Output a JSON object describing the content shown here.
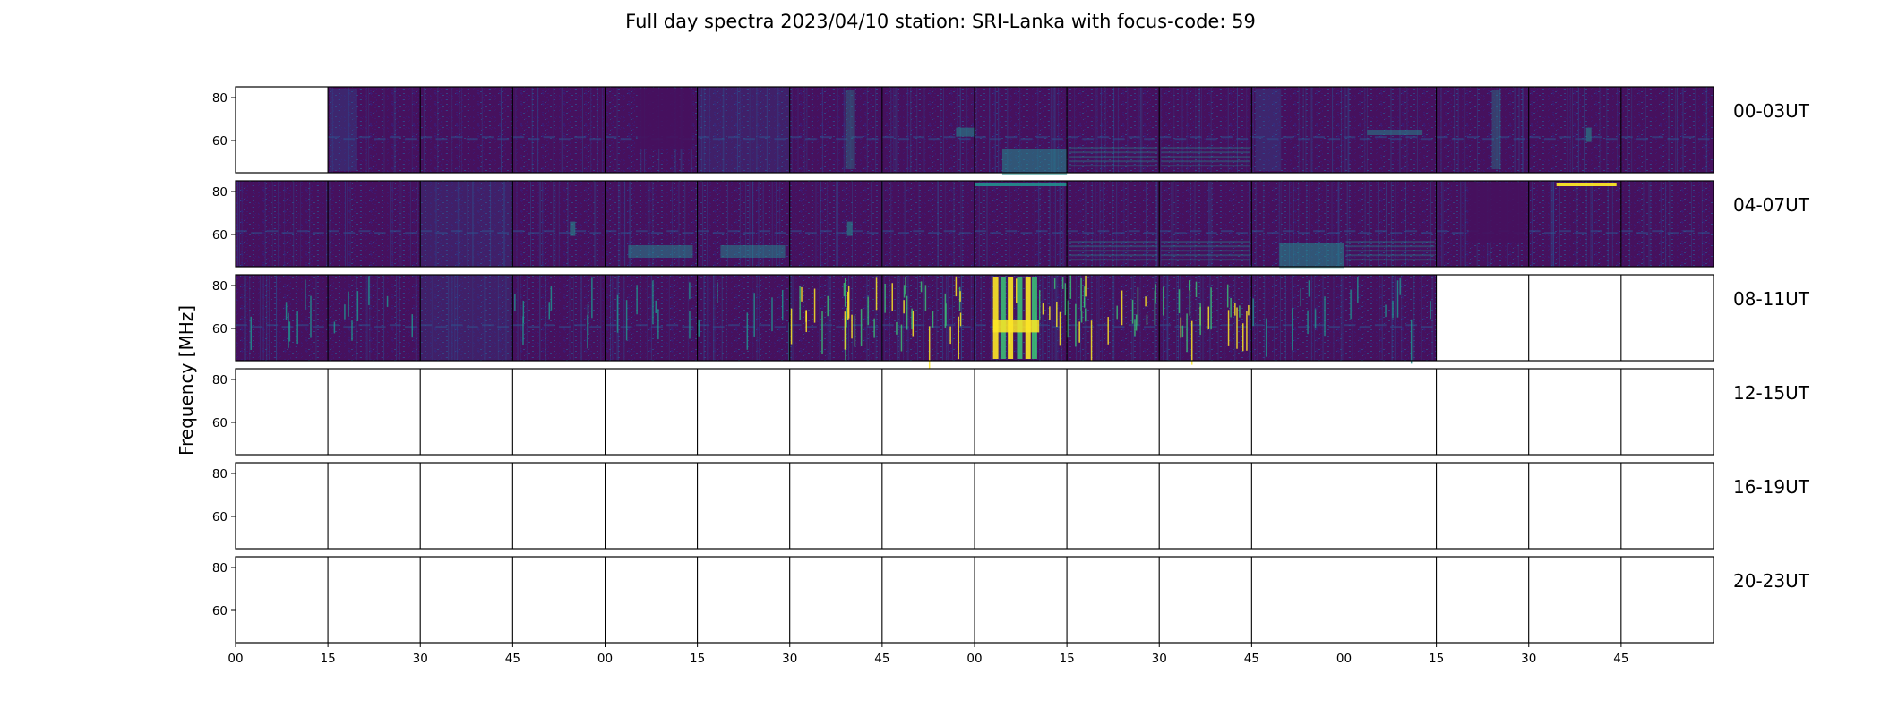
{
  "chart_data": {
    "type": "heatmap",
    "title": "Full day spectra 2023/04/10 station: SRI-Lanka with focus-code: 59",
    "ylabel": "Frequency [MHz]",
    "xlabel": "",
    "y_ticks": [
      80,
      60
    ],
    "ylim": [
      45,
      85
    ],
    "x_ticks": [
      "00",
      "15",
      "30",
      "45",
      "00",
      "15",
      "30",
      "45",
      "00",
      "15",
      "30",
      "45",
      "00",
      "15",
      "30",
      "45"
    ],
    "colormap": "viridis",
    "colors": {
      "base": "#46115e",
      "noise_low": "#3b1c75",
      "noise_mid": "#2e4e8c",
      "cyan": "#21908d",
      "green": "#3bbb75",
      "yellow": "#fde725",
      "frame": "#000000",
      "empty": "#ffffff"
    },
    "rows": [
      {
        "label": "00-03UT",
        "panels": [
          {
            "data": false,
            "intensity": 0
          },
          {
            "data": true,
            "intensity": 0.3,
            "feature": "block-left"
          },
          {
            "data": true,
            "intensity": 0.3,
            "feature": "drift"
          },
          {
            "data": true,
            "intensity": 0.3,
            "feature": "drift"
          },
          {
            "data": true,
            "intensity": 0.35,
            "feature": "block-right"
          },
          {
            "data": true,
            "intensity": 0.35,
            "feature": "dense"
          },
          {
            "data": true,
            "intensity": 0.4,
            "feature": "vertical-glow"
          },
          {
            "data": true,
            "intensity": 0.5,
            "feature": "cyan-glow"
          },
          {
            "data": true,
            "intensity": 0.6,
            "feature": "cyan-bottom"
          },
          {
            "data": true,
            "intensity": 0.4,
            "feature": "waves"
          },
          {
            "data": true,
            "intensity": 0.4,
            "feature": "waves"
          },
          {
            "data": true,
            "intensity": 0.3,
            "feature": "block-left"
          },
          {
            "data": true,
            "intensity": 0.4,
            "feature": "band-mid"
          },
          {
            "data": true,
            "intensity": 0.45,
            "feature": "vertical-glow"
          },
          {
            "data": true,
            "intensity": 0.35,
            "feature": "spot"
          },
          {
            "data": true,
            "intensity": 0.3,
            "feature": "drift"
          }
        ]
      },
      {
        "label": "04-07UT",
        "panels": [
          {
            "data": true,
            "intensity": 0.35,
            "feature": "drift"
          },
          {
            "data": true,
            "intensity": 0.3,
            "feature": "drift"
          },
          {
            "data": true,
            "intensity": 0.4,
            "feature": "dense"
          },
          {
            "data": true,
            "intensity": 0.35,
            "feature": "spot"
          },
          {
            "data": true,
            "intensity": 0.45,
            "feature": "cyan-low"
          },
          {
            "data": true,
            "intensity": 0.5,
            "feature": "cyan-low"
          },
          {
            "data": true,
            "intensity": 0.35,
            "feature": "spot"
          },
          {
            "data": true,
            "intensity": 0.3,
            "feature": "drift"
          },
          {
            "data": true,
            "intensity": 0.45,
            "feature": "top-line"
          },
          {
            "data": true,
            "intensity": 0.4,
            "feature": "waves"
          },
          {
            "data": true,
            "intensity": 0.4,
            "feature": "waves"
          },
          {
            "data": true,
            "intensity": 0.55,
            "feature": "cyan-bottom"
          },
          {
            "data": true,
            "intensity": 0.4,
            "feature": "waves"
          },
          {
            "data": true,
            "intensity": 0.35,
            "feature": "block-right"
          },
          {
            "data": true,
            "intensity": 0.45,
            "feature": "top-yellow"
          },
          {
            "data": true,
            "intensity": 0.3,
            "feature": "drift"
          }
        ]
      },
      {
        "label": "08-11UT",
        "panels": [
          {
            "data": true,
            "intensity": 0.35,
            "feature": "lines"
          },
          {
            "data": true,
            "intensity": 0.35,
            "feature": "lines"
          },
          {
            "data": true,
            "intensity": 0.4,
            "feature": "dense"
          },
          {
            "data": true,
            "intensity": 0.4,
            "feature": "lines"
          },
          {
            "data": true,
            "intensity": 0.4,
            "feature": "lines"
          },
          {
            "data": true,
            "intensity": 0.45,
            "feature": "lines"
          },
          {
            "data": true,
            "intensity": 0.55,
            "feature": "burst"
          },
          {
            "data": true,
            "intensity": 0.7,
            "feature": "burst"
          },
          {
            "data": true,
            "intensity": 1.0,
            "feature": "burst-strong"
          },
          {
            "data": true,
            "intensity": 0.8,
            "feature": "burst"
          },
          {
            "data": true,
            "intensity": 0.6,
            "feature": "burst"
          },
          {
            "data": true,
            "intensity": 0.45,
            "feature": "lines"
          },
          {
            "data": true,
            "intensity": 0.4,
            "feature": "lines"
          },
          {
            "data": false,
            "intensity": 0
          },
          {
            "data": false,
            "intensity": 0
          },
          {
            "data": false,
            "intensity": 0
          }
        ]
      },
      {
        "label": "12-15UT",
        "panels": []
      },
      {
        "label": "16-19UT",
        "panels": []
      },
      {
        "label": "20-23UT",
        "panels": []
      }
    ]
  }
}
